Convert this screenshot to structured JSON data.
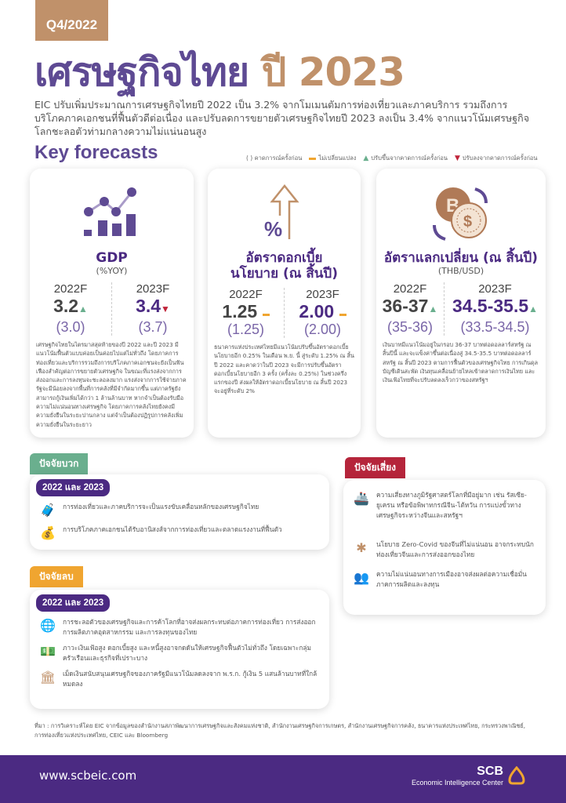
{
  "header": {
    "quarter": "Q4/2022",
    "title_part1": "เศรษฐกิจไทย",
    "title_part2": "ปี 2023",
    "intro": "EIC ปรับเพิ่มประมาณการเศรษฐกิจไทยปี 2022 เป็น 3.2% จากโมเมนตัมการท่องเที่ยวและภาคบริการ รวมถึงการบริโภคภาคเอกชนที่ฟื้นตัวดีต่อเนื่อง และปรับลดการขยายตัวเศรษฐกิจไทยปี 2023 ลงเป็น 3.4% จากแนวโน้มเศรษฐกิจโลกชะลอตัวท่ามกลางความไม่แน่นอนสูง"
  },
  "key_forecasts": {
    "heading": "Key forecasts",
    "legend": {
      "prev": "( ) คาดการณ์ครั้งก่อน",
      "same": "ไม่เปลี่ยนแปลง",
      "up": "ปรับขึ้นจากคาดการณ์ครั้งก่อน",
      "down": "ปรับลงจากคาดการณ์ครั้งก่อน"
    },
    "cards": [
      {
        "title": "GDP",
        "unit": "(%YOY)",
        "y1": "2022F",
        "v1": "3.2",
        "p1": "(3.0)",
        "c1": "up",
        "y2": "2023F",
        "v2": "3.4",
        "p2": "(3.7)",
        "c2": "down",
        "desc": "เศรษฐกิจไทยในไตรมาสสุดท้ายของปี 2022 และปี 2023 มีแนวโน้มฟื้นตัวแบบค่อยเป็นค่อยไปแต่ไม่ทั่วถึง โดยภาคการท่องเที่ยวและบริการรวมถึงการบริโภคภาคเอกชนจะยังเป็นฟันเฟืองสำคัญต่อการขยายตัวเศรษฐกิจ ในขณะที่แรงส่งจากการส่งออกและการลงทุนจะชะลอลงมาก แรงส่งจากการใช้จ่ายภาครัฐจะมีน้อยลงจากพื้นที่การคลังที่มีจำกัดมากขึ้น แต่ภาครัฐยังสามารถกู้เงินเพิ่มได้กว่า 1 ล้านล้านบาท หากจำเป็นต้องรับมือความไม่แน่นอนทางเศรษฐกิจ โดยภาคการคลังไทยยังคงมีความยั่งยืนในระยะปานกลาง แต่จำเป็นต้องปฏิรูปการคลังเพิ่มความยั่งยืนในระยะยาว"
      },
      {
        "title": "อัตราดอกเบี้ยนโยบาย (ณ สิ้นปี)",
        "unit": "",
        "y1": "2022F",
        "v1": "1.25",
        "p1": "(1.25)",
        "c1": "same",
        "y2": "2023F",
        "v2": "2.00",
        "p2": "(2.00)",
        "c2": "same",
        "desc": "ธนาคารแห่งประเทศไทยมีแนวโน้มปรับขึ้นอัตราดอกเบี้ยนโยบายอีก 0.25% ในเดือน พ.ย. นี้ สู่ระดับ 1.25% ณ สิ้นปี 2022 และคาดว่าในปี 2023 จะมีการปรับขึ้นอัตราดอกเบี้ยนโยบายอีก 3 ครั้ง (ครั้งละ 0.25%) ในช่วงครึ่งแรกของปี ส่งผลให้อัตราดอกเบี้ยนโยบาย ณ สิ้นปี 2023 จะอยู่ที่ระดับ 2%"
      },
      {
        "title": "อัตราแลกเปลี่ยน (ณ สิ้นปี)",
        "unit": "(THB/USD)",
        "y1": "2022F",
        "v1": "36-37",
        "p1": "(35-36)",
        "c1": "up",
        "y2": "2023F",
        "v2": "34.5-35.5",
        "p2": "(33.5-34.5)",
        "c2": "up",
        "desc": "เงินบาทมีแนวโน้มอยู่ในกรอบ 36-37 บาทต่อดอลลาร์สหรัฐ ณ สิ้นปีนี้ และจะแข็งค่าขึ้นต่อเนื่องสู่ 34.5-35.5 บาทต่อดอลลาร์สหรัฐ ณ สิ้นปี 2023 ตามการฟื้นตัวของเศรษฐกิจไทย การเกินดุลบัญชีเดินสะพัด เงินทุนเคลื่อนย้ายไหลเข้าตลาดการเงินไทย และเงินเฟ้อไทยที่จะปรับลดลงเร็วกว่าของสหรัฐฯ"
      }
    ]
  },
  "positive": {
    "tab": "ปัจจัยบวก",
    "period": "2022 และ 2023",
    "items": [
      {
        "icon": "tourism-icon",
        "text": "การท่องเที่ยวและภาคบริการจะเป็นแรงขับเคลื่อนหลักของเศรษฐกิจไทย"
      },
      {
        "icon": "consumption-icon",
        "text": "การบริโภคภาคเอกชนได้รับอานิสงส์จากการท่องเที่ยวและตลาดแรงงานที่ฟื้นตัว"
      }
    ]
  },
  "negative": {
    "tab": "ปัจจัยลบ",
    "period": "2022 และ 2023",
    "items": [
      {
        "icon": "globe-icon",
        "text": "การชะลอตัวของเศรษฐกิจและการค้าโลกที่อาจส่งผลกระทบต่อภาคการท่องเที่ยว การส่งออก การผลิตภาคอุตสาหกรรม และการลงทุนของไทย"
      },
      {
        "icon": "money-icon",
        "text": "ภาวะเงินเฟ้อสูง ดอกเบี้ยสูง และหนี้สูงอาจกดดันให้เศรษฐกิจฟื้นตัวไม่ทั่วถึง โดยเฉพาะกลุ่มครัวเรือนและธุรกิจที่เปราะบาง"
      },
      {
        "icon": "government-icon",
        "text": "เม็ดเงินสนับสนุนเศรษฐกิจของภาครัฐมีแนวโน้มลดลงจาก พ.ร.ก. กู้เงิน 5 แสนล้านบาทที่ใกล้หมดลง"
      }
    ]
  },
  "risk": {
    "tab": "ปัจจัยเสี่ยง",
    "items": [
      {
        "icon": "ship-icon",
        "text": "ความเสี่ยงทางภูมิรัฐศาสตร์โลกที่มีอยู่มาก เช่น รัสเซีย-ยูเครน หรือข้อพิพาทกรณีจีน-ไต้หวัน การแบ่งขั้วทางเศรษฐกิจระหว่างจีนและสหรัฐฯ"
      },
      {
        "icon": "virus-icon",
        "text": "นโยบาย Zero-Covid ของจีนที่ไม่แน่นอน อาจกระทบนักท่องเที่ยวจีนและการส่งออกของไทย"
      },
      {
        "icon": "politics-icon",
        "text": "ความไม่แน่นอนทางการเมืองอาจส่งผลต่อความเชื่อมั่นภาคการผลิตและลงทุน"
      }
    ]
  },
  "source": "ที่มา : การวิเคราะห์โดย EIC จากข้อมูลของสำนักงานสภาพัฒนาการเศรษฐกิจและสังคมแห่งชาติ, สำนักงานเศรษฐกิจการเกษตร, สำนักงานเศรษฐกิจการคลัง, ธนาคารแห่งประเทศไทย, กระทรวงพาณิชย์, การท่องเที่ยวแห่งประเทศไทย, CEIC และ Bloomberg",
  "footer": {
    "url": "www.scbeic.com",
    "logo_scb": "SCB",
    "logo_sub": "Economic Intelligence Center"
  },
  "colors": {
    "purple": "#4b2a82",
    "title_purple": "#5e4a93",
    "tan": "#c0916a",
    "green": "#6aaf8e",
    "orange": "#f0a530",
    "red": "#b5253b"
  }
}
